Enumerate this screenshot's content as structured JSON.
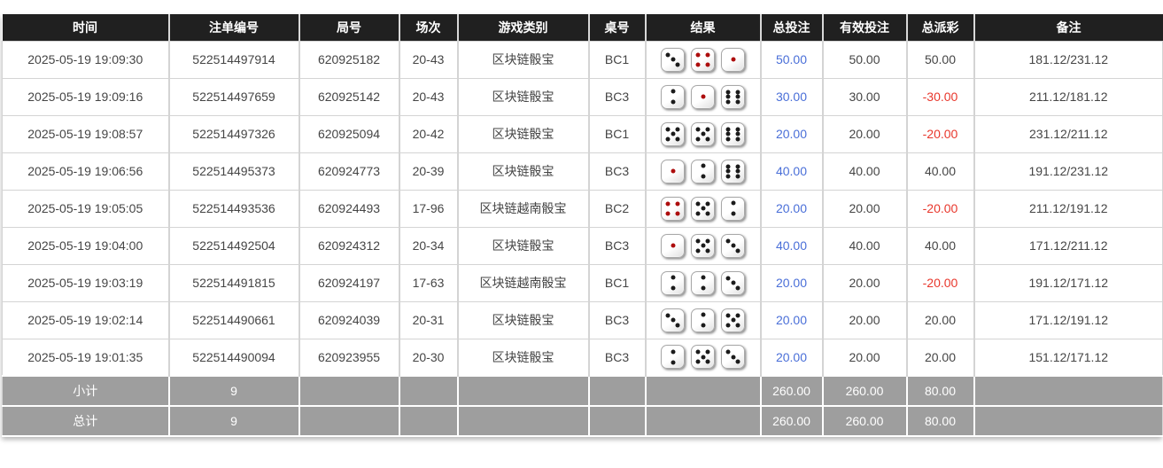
{
  "colors": {
    "header_bg": "#202020",
    "summary_bg": "#9e9e9e",
    "bet_link_blue": "#4a6fd8",
    "negative_red": "#e8372c"
  },
  "dice": {
    "red_pip_values": [
      1,
      4
    ]
  },
  "table": {
    "headers": [
      "时间",
      "注单编号",
      "局号",
      "场次",
      "游戏类别",
      "桌号",
      "结果",
      "总投注",
      "有效投注",
      "总派彩",
      "备注"
    ],
    "rows": [
      {
        "time": "2025-05-19 19:09:30",
        "bet_id": "522514497914",
        "round_id": "620925182",
        "session": "20-43",
        "game": "区块链骰宝",
        "table_no": "BC1",
        "dice": [
          3,
          4,
          1
        ],
        "total_bet": "50.00",
        "valid_bet": "50.00",
        "payout": "50.00",
        "remark": "181.12/231.12"
      },
      {
        "time": "2025-05-19 19:09:16",
        "bet_id": "522514497659",
        "round_id": "620925142",
        "session": "20-43",
        "game": "区块链骰宝",
        "table_no": "BC3",
        "dice": [
          2,
          1,
          6
        ],
        "total_bet": "30.00",
        "valid_bet": "30.00",
        "payout": "-30.00",
        "remark": "211.12/181.12"
      },
      {
        "time": "2025-05-19 19:08:57",
        "bet_id": "522514497326",
        "round_id": "620925094",
        "session": "20-42",
        "game": "区块链骰宝",
        "table_no": "BC1",
        "dice": [
          5,
          5,
          6
        ],
        "total_bet": "20.00",
        "valid_bet": "20.00",
        "payout": "-20.00",
        "remark": "231.12/211.12"
      },
      {
        "time": "2025-05-19 19:06:56",
        "bet_id": "522514495373",
        "round_id": "620924773",
        "session": "20-39",
        "game": "区块链骰宝",
        "table_no": "BC3",
        "dice": [
          1,
          2,
          6
        ],
        "total_bet": "40.00",
        "valid_bet": "40.00",
        "payout": "40.00",
        "remark": "191.12/231.12"
      },
      {
        "time": "2025-05-19 19:05:05",
        "bet_id": "522514493536",
        "round_id": "620924493",
        "session": "17-96",
        "game": "区块链越南骰宝",
        "table_no": "BC2",
        "dice": [
          4,
          5,
          2
        ],
        "total_bet": "20.00",
        "valid_bet": "20.00",
        "payout": "-20.00",
        "remark": "211.12/191.12"
      },
      {
        "time": "2025-05-19 19:04:00",
        "bet_id": "522514492504",
        "round_id": "620924312",
        "session": "20-34",
        "game": "区块链骰宝",
        "table_no": "BC3",
        "dice": [
          1,
          5,
          3
        ],
        "total_bet": "40.00",
        "valid_bet": "40.00",
        "payout": "40.00",
        "remark": "171.12/211.12"
      },
      {
        "time": "2025-05-19 19:03:19",
        "bet_id": "522514491815",
        "round_id": "620924197",
        "session": "17-63",
        "game": "区块链越南骰宝",
        "table_no": "BC1",
        "dice": [
          2,
          2,
          3
        ],
        "total_bet": "20.00",
        "valid_bet": "20.00",
        "payout": "-20.00",
        "remark": "191.12/171.12"
      },
      {
        "time": "2025-05-19 19:02:14",
        "bet_id": "522514490661",
        "round_id": "620924039",
        "session": "20-31",
        "game": "区块链骰宝",
        "table_no": "BC3",
        "dice": [
          3,
          2,
          5
        ],
        "total_bet": "20.00",
        "valid_bet": "20.00",
        "payout": "20.00",
        "remark": "171.12/191.12"
      },
      {
        "time": "2025-05-19 19:01:35",
        "bet_id": "522514490094",
        "round_id": "620923955",
        "session": "20-30",
        "game": "区块链骰宝",
        "table_no": "BC3",
        "dice": [
          2,
          5,
          3
        ],
        "total_bet": "20.00",
        "valid_bet": "20.00",
        "payout": "20.00",
        "remark": "151.12/171.12"
      }
    ],
    "summary": [
      {
        "label": "小计",
        "count": "9",
        "total_bet": "260.00",
        "valid_bet": "260.00",
        "payout": "80.00"
      },
      {
        "label": "总计",
        "count": "9",
        "total_bet": "260.00",
        "valid_bet": "260.00",
        "payout": "80.00"
      }
    ]
  }
}
